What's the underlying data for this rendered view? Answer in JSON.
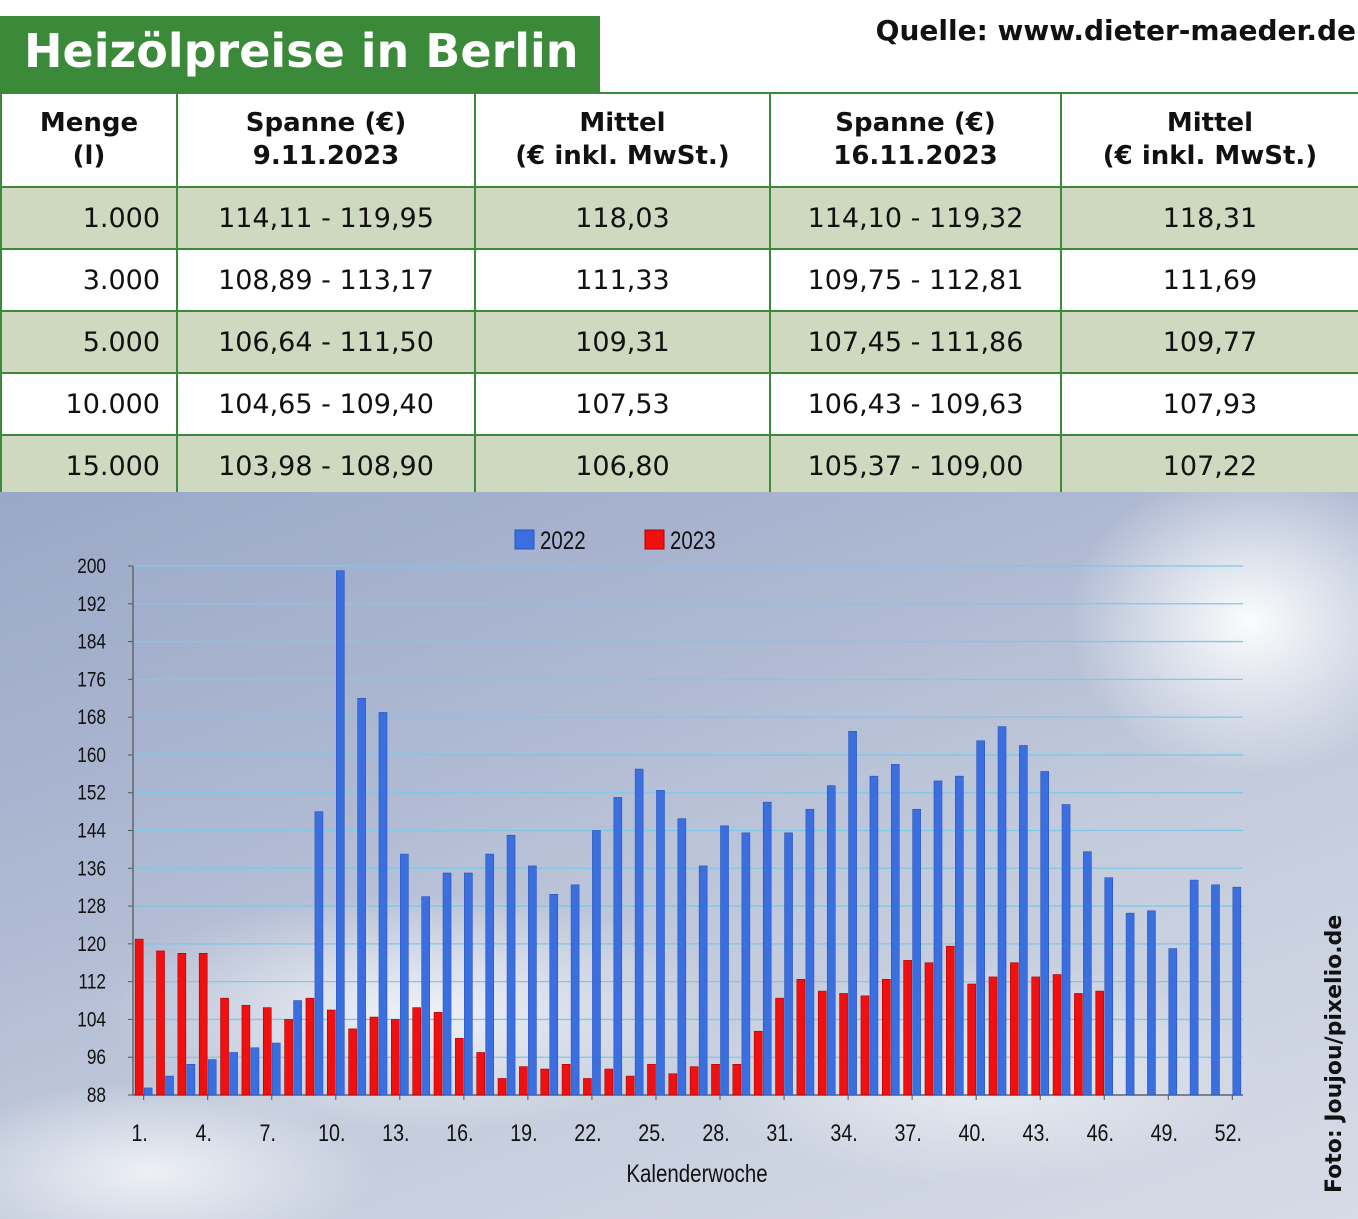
{
  "header": {
    "title": "Heizölpreise in Berlin",
    "source": "Quelle: www.dieter-maeder.de"
  },
  "table": {
    "columns": [
      {
        "line1": "Menge",
        "line2": "(l)"
      },
      {
        "line1": "Spanne (€)",
        "line2": "9.11.2023"
      },
      {
        "line1": "Mittel",
        "line2": "(€ inkl. MwSt.)"
      },
      {
        "line1": "Spanne (€)",
        "line2": "16.11.2023"
      },
      {
        "line1": "Mittel",
        "line2": "(€ inkl. MwSt.)"
      }
    ],
    "rows": [
      [
        "1.000",
        "114,11 - 119,95",
        "118,03",
        "114,10 - 119,32",
        "118,31"
      ],
      [
        "3.000",
        "108,89 - 113,17",
        "111,33",
        "109,75 - 112,81",
        "111,69"
      ],
      [
        "5.000",
        "106,64 - 111,50",
        "109,31",
        "107,45 - 111,86",
        "109,77"
      ],
      [
        "10.000",
        "104,65 - 109,40",
        "107,53",
        "106,43 - 109,63",
        "107,93"
      ],
      [
        "15.000",
        "103,98 - 108,90",
        "106,80",
        "105,37 - 109,00",
        "107,22"
      ]
    ]
  },
  "photo_credit": "Foto: Joujou/pixelio.de",
  "colors": {
    "title_bg": "#3a8a3a",
    "row_shade": "#cfd9c0",
    "series_2022": "#3b6fe0",
    "series_2023": "#f01010",
    "grid": "#7ec8e8"
  },
  "chart_data": {
    "type": "bar",
    "xlabel": "Kalenderwoche",
    "ylabel": "",
    "ylim": [
      88,
      200
    ],
    "yticks": [
      200,
      192,
      184,
      176,
      168,
      160,
      152,
      144,
      136,
      128,
      120,
      112,
      104,
      96,
      88
    ],
    "xtick_labels": [
      "1.",
      "4.",
      "7.",
      "10.",
      "13.",
      "16.",
      "19.",
      "22.",
      "25.",
      "28.",
      "31.",
      "34.",
      "37.",
      "40.",
      "43.",
      "46.",
      "49.",
      "52."
    ],
    "xtick_weeks": [
      1,
      4,
      7,
      10,
      13,
      16,
      19,
      22,
      25,
      28,
      31,
      34,
      37,
      40,
      43,
      46,
      49,
      52
    ],
    "legend_position": "top-center",
    "grid": true,
    "categories": [
      1,
      2,
      3,
      4,
      5,
      6,
      7,
      8,
      9,
      10,
      11,
      12,
      13,
      14,
      15,
      16,
      17,
      18,
      19,
      20,
      21,
      22,
      23,
      24,
      25,
      26,
      27,
      28,
      29,
      30,
      31,
      32,
      33,
      34,
      35,
      36,
      37,
      38,
      39,
      40,
      41,
      42,
      43,
      44,
      45,
      46,
      47,
      48,
      49,
      50,
      51,
      52
    ],
    "series": [
      {
        "name": "2022",
        "values": [
          89.5,
          92,
          94.5,
          95.5,
          97,
          98,
          99,
          108,
          148,
          199,
          172,
          169,
          139,
          130,
          135,
          135,
          139,
          143,
          136.5,
          130.5,
          132.5,
          144,
          151,
          157,
          152.5,
          146.5,
          136.5,
          145,
          143.5,
          150,
          143.5,
          148.5,
          153.5,
          165,
          155.5,
          158,
          148.5,
          154.5,
          155.5,
          163,
          166,
          162,
          156.5,
          149.5,
          139.5,
          134,
          126.5,
          127,
          119,
          133.5,
          132.5,
          132
        ]
      },
      {
        "name": "2023",
        "values": [
          121,
          118.5,
          118,
          118,
          108.5,
          107,
          106.5,
          104,
          108.5,
          106,
          102,
          104.5,
          104,
          106.5,
          105.5,
          100,
          97,
          91.5,
          94,
          93.5,
          94.5,
          91.5,
          93.5,
          92,
          94.5,
          92.5,
          94,
          94.5,
          94.5,
          101.5,
          108.5,
          112.5,
          110,
          109.5,
          109,
          112.5,
          116.5,
          116,
          119.5,
          111.5,
          113,
          116,
          113,
          113.5,
          109.5,
          110,
          null,
          null,
          null,
          null,
          null,
          null
        ]
      }
    ]
  }
}
